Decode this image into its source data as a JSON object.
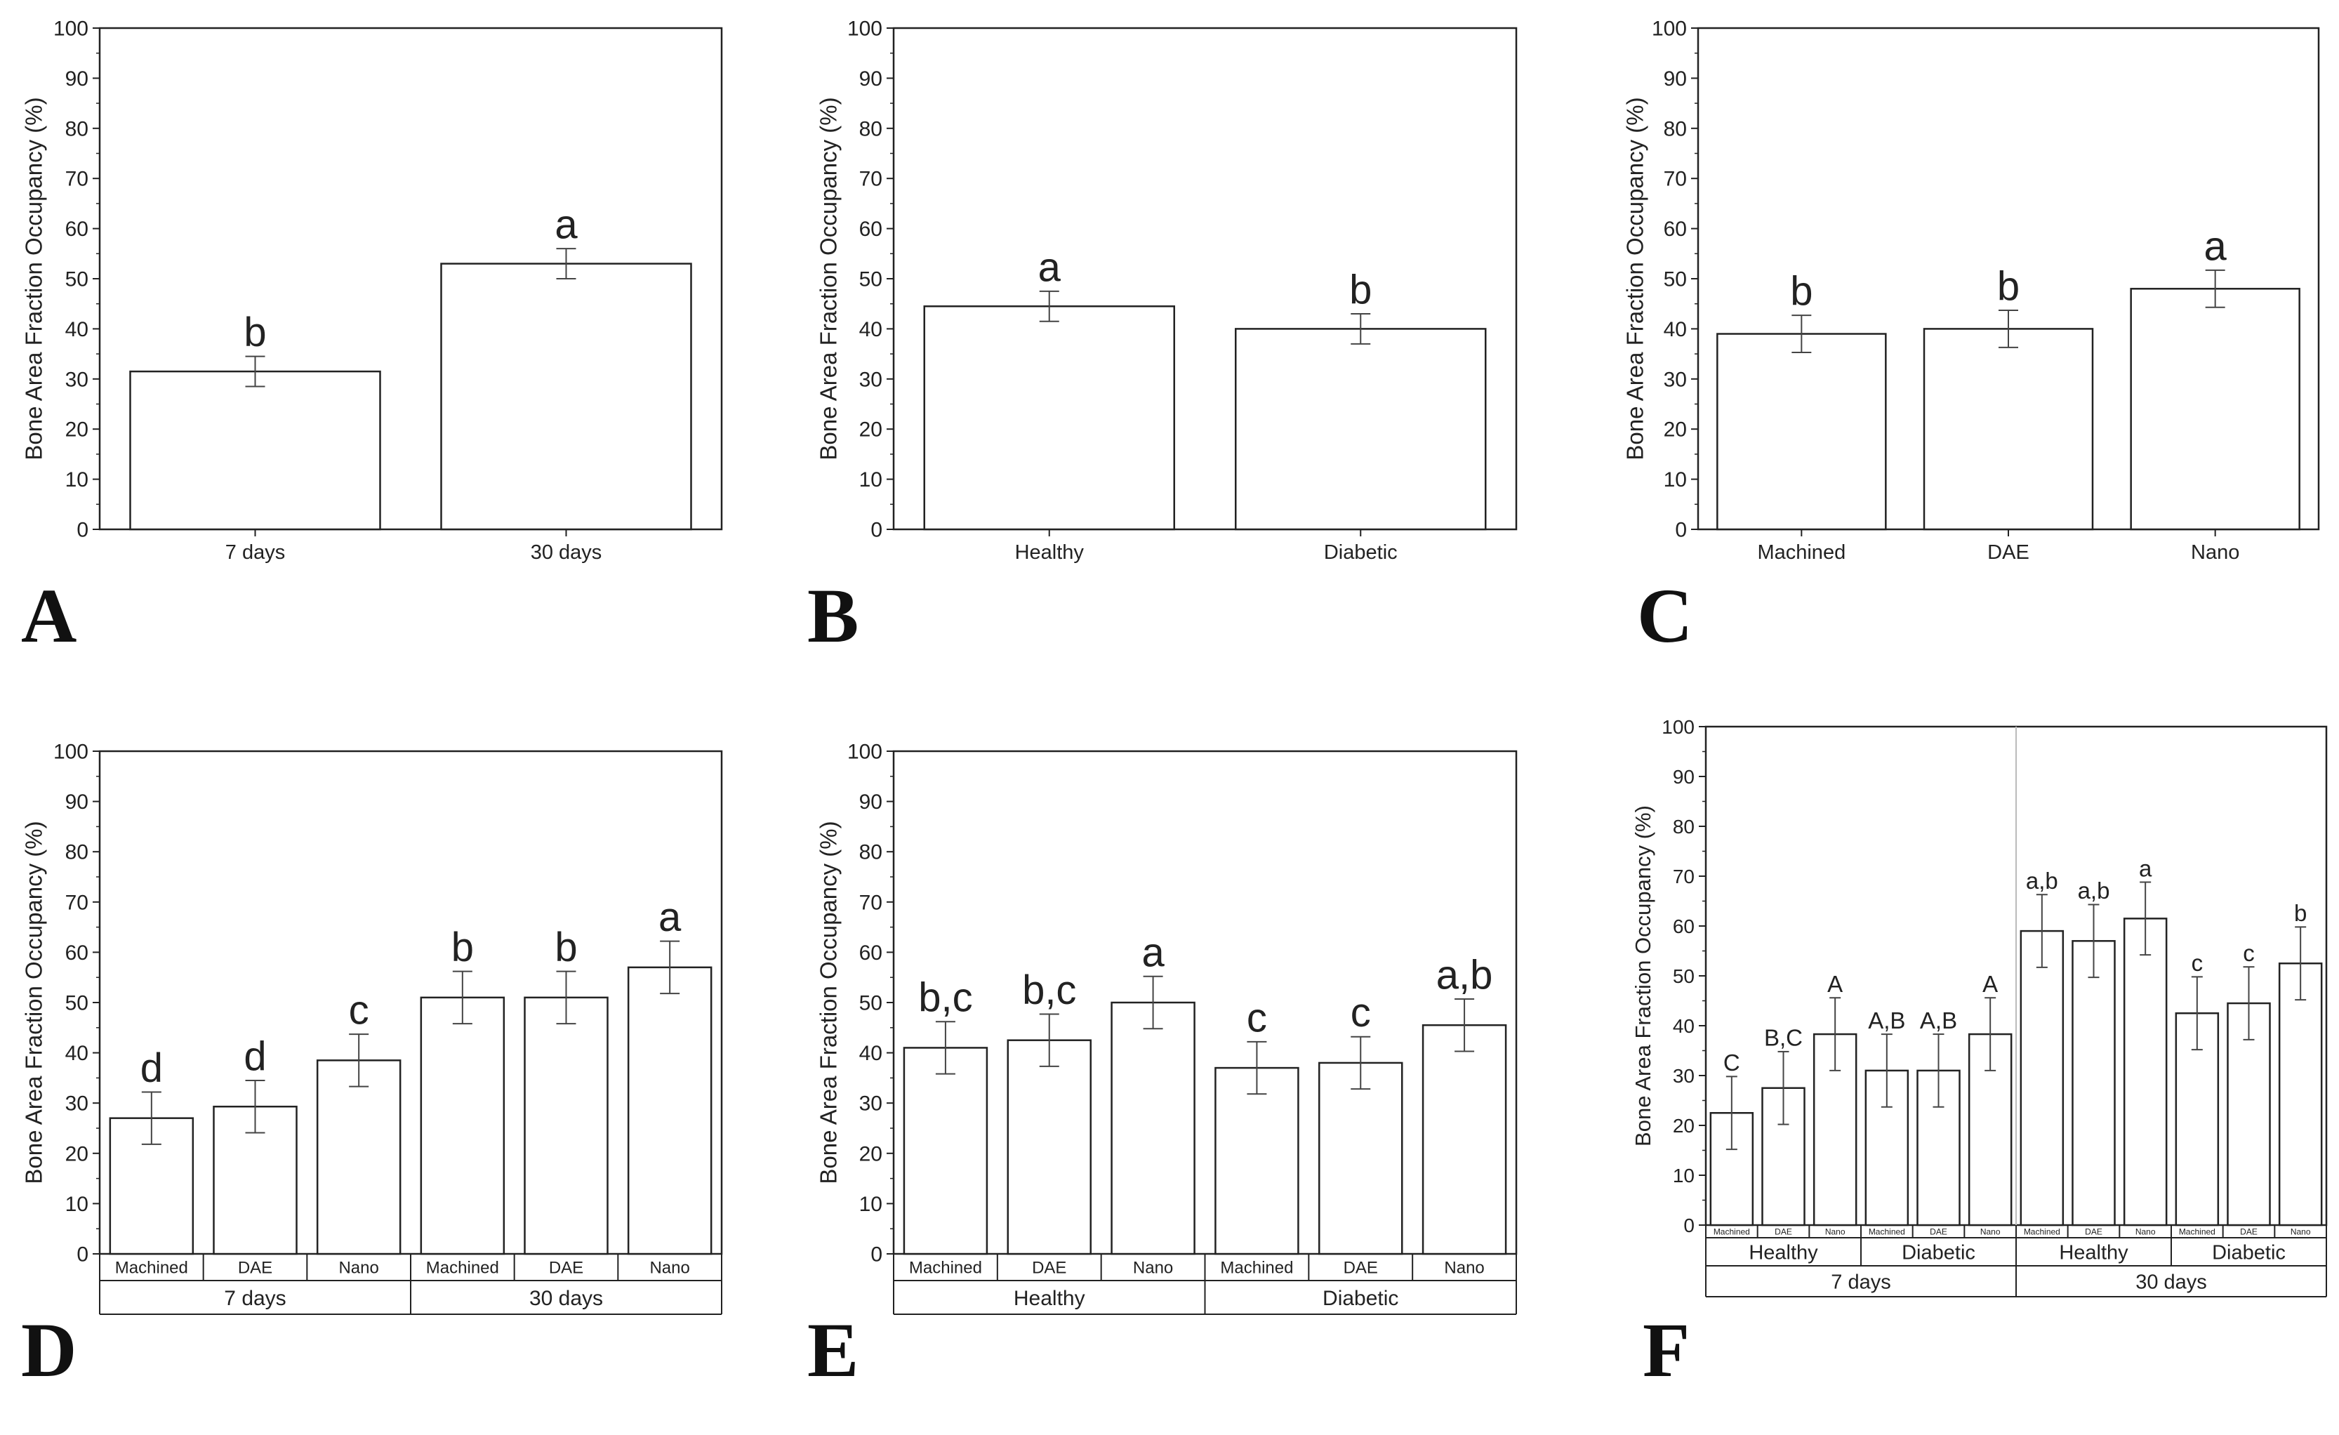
{
  "chart_data": [
    {
      "panel": "A",
      "type": "bar",
      "ylabel": "Bone Area Fraction Occupancy (%)",
      "ylim": [
        0,
        100
      ],
      "yticks": [
        "0",
        "10",
        "20",
        "30",
        "40",
        "50",
        "60",
        "70",
        "80",
        "90",
        "100"
      ],
      "categories": [
        "7 days",
        "30 days"
      ],
      "values": [
        31.5,
        53
      ],
      "errors": [
        3,
        3
      ],
      "letters": [
        "b",
        "a"
      ],
      "groups": []
    },
    {
      "panel": "B",
      "type": "bar",
      "ylabel": "Bone Area Fraction Occupancy (%)",
      "ylim": [
        0,
        100
      ],
      "yticks": [
        "0",
        "10",
        "20",
        "30",
        "40",
        "50",
        "60",
        "70",
        "80",
        "90",
        "100"
      ],
      "categories": [
        "Healthy",
        "Diabetic"
      ],
      "values": [
        44.5,
        40
      ],
      "errors": [
        3,
        3
      ],
      "letters": [
        "a",
        "b"
      ],
      "groups": []
    },
    {
      "panel": "C",
      "type": "bar",
      "ylabel": "Bone Area Fraction Occupancy (%)",
      "ylim": [
        0,
        100
      ],
      "yticks": [
        "0",
        "10",
        "20",
        "30",
        "40",
        "50",
        "60",
        "70",
        "80",
        "90",
        "100"
      ],
      "categories": [
        "Machined",
        "DAE",
        "Nano"
      ],
      "values": [
        39,
        40,
        48
      ],
      "errors": [
        3.7,
        3.7,
        3.7
      ],
      "letters": [
        "b",
        "b",
        "a"
      ],
      "groups": []
    },
    {
      "panel": "D",
      "type": "bar",
      "ylabel": "Bone Area Fraction Occupancy (%)",
      "ylim": [
        0,
        100
      ],
      "yticks": [
        "0",
        "10",
        "20",
        "30",
        "40",
        "50",
        "60",
        "70",
        "80",
        "90",
        "100"
      ],
      "categories": [
        "Machined",
        "DAE",
        "Nano",
        "Machined",
        "DAE",
        "Nano"
      ],
      "values": [
        27,
        29.3,
        38.5,
        51,
        51,
        57
      ],
      "errors": [
        5.2,
        5.2,
        5.2,
        5.2,
        5.2,
        5.2
      ],
      "letters": [
        "d",
        "d",
        "c",
        "b",
        "b",
        "a"
      ],
      "groups": [
        {
          "label": "7 days",
          "span": 3
        },
        {
          "label": "30 days",
          "span": 3
        }
      ]
    },
    {
      "panel": "E",
      "type": "bar",
      "ylabel": "Bone Area Fraction Occupancy (%)",
      "ylim": [
        0,
        100
      ],
      "yticks": [
        "0",
        "10",
        "20",
        "30",
        "40",
        "50",
        "60",
        "70",
        "80",
        "90",
        "100"
      ],
      "categories": [
        "Machined",
        "DAE",
        "Nano",
        "Machined",
        "DAE",
        "Nano"
      ],
      "values": [
        41,
        42.5,
        50,
        37,
        38,
        45.5
      ],
      "errors": [
        5.2,
        5.2,
        5.2,
        5.2,
        5.2,
        5.2
      ],
      "letters": [
        "b,c",
        "b,c",
        "a",
        "c",
        "c",
        "a,b"
      ],
      "groups": [
        {
          "label": "Healthy",
          "span": 3
        },
        {
          "label": "Diabetic",
          "span": 3
        }
      ]
    },
    {
      "panel": "F",
      "type": "bar",
      "ylabel": "Bone Area Fraction Occupancy (%)",
      "ylim": [
        0,
        100
      ],
      "yticks": [
        "0",
        "10",
        "20",
        "30",
        "40",
        "50",
        "60",
        "70",
        "80",
        "90",
        "100"
      ],
      "categories": [
        "Machined",
        "DAE",
        "Nano",
        "Machined",
        "DAE",
        "Nano",
        "Machined",
        "DAE",
        "Nano",
        "Machined",
        "DAE",
        "Nano"
      ],
      "values": [
        22.5,
        27.5,
        38.3,
        31,
        31,
        38.3,
        59,
        57,
        61.5,
        42.5,
        44.5,
        52.5
      ],
      "errors": [
        7.3,
        7.3,
        7.3,
        7.3,
        7.3,
        7.3,
        7.3,
        7.3,
        7.3,
        7.3,
        7.3,
        7.3
      ],
      "letters": [
        "C",
        "B,C",
        "A",
        "A,B",
        "A,B",
        "A",
        "a,b",
        "a,b",
        "a",
        "c",
        "c",
        "b"
      ],
      "groups": [
        {
          "label": "Healthy",
          "span": 3
        },
        {
          "label": "Diabetic",
          "span": 3
        },
        {
          "label": "Healthy",
          "span": 3
        },
        {
          "label": "Diabetic",
          "span": 3
        }
      ],
      "groups2": [
        {
          "label": "7 days",
          "span": 6
        },
        {
          "label": "30 days",
          "span": 6
        }
      ],
      "divider_after": 6
    }
  ]
}
